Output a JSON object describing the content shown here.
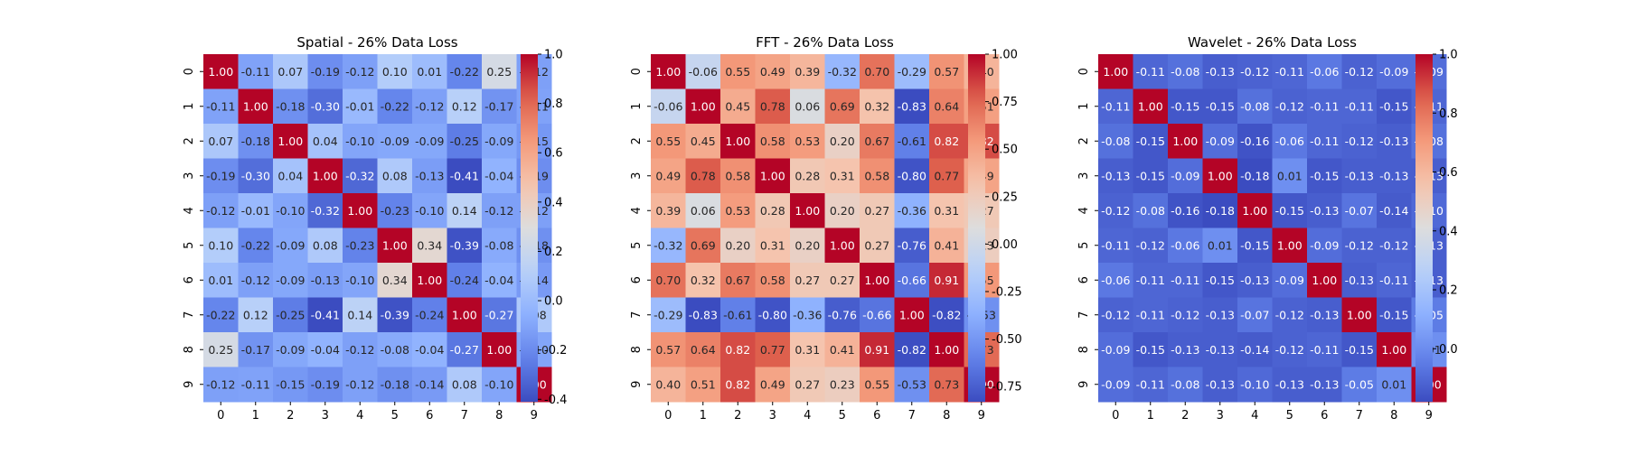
{
  "chart_data": [
    {
      "type": "heatmap",
      "title": "Spatial - 26% Data Loss",
      "x_categories": [
        "0",
        "1",
        "2",
        "3",
        "4",
        "5",
        "6",
        "7",
        "8",
        "9"
      ],
      "y_categories": [
        "0",
        "1",
        "2",
        "3",
        "4",
        "5",
        "6",
        "7",
        "8",
        "9"
      ],
      "colormap": "coolwarm",
      "vmin": -0.41,
      "vmax": 1.0,
      "colorbar_ticks": [
        "-0.4",
        "-0.2",
        "0.0",
        "0.2",
        "0.4",
        "0.6",
        "0.8",
        "1.0"
      ],
      "values": [
        [
          1.0,
          -0.11,
          0.07,
          -0.19,
          -0.12,
          0.1,
          0.01,
          -0.22,
          0.25,
          -0.12
        ],
        [
          -0.11,
          1.0,
          -0.18,
          -0.3,
          -0.01,
          -0.22,
          -0.12,
          0.12,
          -0.17,
          -0.11
        ],
        [
          0.07,
          -0.18,
          1.0,
          0.04,
          -0.1,
          -0.09,
          -0.09,
          -0.25,
          -0.09,
          -0.15
        ],
        [
          -0.19,
          -0.3,
          0.04,
          1.0,
          -0.32,
          0.08,
          -0.13,
          -0.41,
          -0.04,
          -0.19
        ],
        [
          -0.12,
          -0.01,
          -0.1,
          -0.32,
          1.0,
          -0.23,
          -0.1,
          0.14,
          -0.12,
          -0.12
        ],
        [
          0.1,
          -0.22,
          -0.09,
          0.08,
          -0.23,
          1.0,
          0.34,
          -0.39,
          -0.08,
          -0.18
        ],
        [
          0.01,
          -0.12,
          -0.09,
          -0.13,
          -0.1,
          0.34,
          1.0,
          -0.24,
          -0.04,
          -0.14
        ],
        [
          -0.22,
          0.12,
          -0.25,
          -0.41,
          0.14,
          -0.39,
          -0.24,
          1.0,
          -0.27,
          0.08
        ],
        [
          0.25,
          -0.17,
          -0.09,
          -0.04,
          -0.12,
          -0.08,
          -0.04,
          -0.27,
          1.0,
          -0.1
        ],
        [
          -0.12,
          -0.11,
          -0.15,
          -0.19,
          -0.12,
          -0.18,
          -0.14,
          0.08,
          -0.1,
          1.0
        ]
      ]
    },
    {
      "type": "heatmap",
      "title": "FFT - 26% Data Loss",
      "x_categories": [
        "0",
        "1",
        "2",
        "3",
        "4",
        "5",
        "6",
        "7",
        "8",
        "9"
      ],
      "y_categories": [
        "0",
        "1",
        "2",
        "3",
        "4",
        "5",
        "6",
        "7",
        "8",
        "9"
      ],
      "colormap": "coolwarm",
      "vmin": -0.83,
      "vmax": 1.0,
      "colorbar_ticks": [
        "-0.75",
        "-0.50",
        "-0.25",
        "0.00",
        "0.25",
        "0.50",
        "0.75",
        "1.00"
      ],
      "values": [
        [
          1.0,
          -0.06,
          0.55,
          0.49,
          0.39,
          -0.32,
          0.7,
          -0.29,
          0.57,
          0.4
        ],
        [
          -0.06,
          1.0,
          0.45,
          0.78,
          0.06,
          0.69,
          0.32,
          -0.83,
          0.64,
          0.51
        ],
        [
          0.55,
          0.45,
          1.0,
          0.58,
          0.53,
          0.2,
          0.67,
          -0.61,
          0.82,
          0.82
        ],
        [
          0.49,
          0.78,
          0.58,
          1.0,
          0.28,
          0.31,
          0.58,
          -0.8,
          0.77,
          0.49
        ],
        [
          0.39,
          0.06,
          0.53,
          0.28,
          1.0,
          0.2,
          0.27,
          -0.36,
          0.31,
          0.27
        ],
        [
          -0.32,
          0.69,
          0.2,
          0.31,
          0.2,
          1.0,
          0.27,
          -0.76,
          0.41,
          0.23
        ],
        [
          0.7,
          0.32,
          0.67,
          0.58,
          0.27,
          0.27,
          1.0,
          -0.66,
          0.91,
          0.55
        ],
        [
          -0.29,
          -0.83,
          -0.61,
          -0.8,
          -0.36,
          -0.76,
          -0.66,
          1.0,
          -0.82,
          -0.53
        ],
        [
          0.57,
          0.64,
          0.82,
          0.77,
          0.31,
          0.41,
          0.91,
          -0.82,
          1.0,
          0.73
        ],
        [
          0.4,
          0.51,
          0.82,
          0.49,
          0.27,
          0.23,
          0.55,
          -0.53,
          0.73,
          1.0
        ]
      ]
    },
    {
      "type": "heatmap",
      "title": "Wavelet - 26% Data Loss",
      "x_categories": [
        "0",
        "1",
        "2",
        "3",
        "4",
        "5",
        "6",
        "7",
        "8",
        "9"
      ],
      "y_categories": [
        "0",
        "1",
        "2",
        "3",
        "4",
        "5",
        "6",
        "7",
        "8",
        "9"
      ],
      "colormap": "coolwarm",
      "vmin": -0.18,
      "vmax": 1.0,
      "colorbar_ticks": [
        "0.0",
        "0.2",
        "0.4",
        "0.6",
        "0.8",
        "1.0"
      ],
      "values": [
        [
          1.0,
          -0.11,
          -0.08,
          -0.13,
          -0.12,
          -0.11,
          -0.06,
          -0.12,
          -0.09,
          -0.09
        ],
        [
          -0.11,
          1.0,
          -0.15,
          -0.15,
          -0.08,
          -0.12,
          -0.11,
          -0.11,
          -0.15,
          -0.11
        ],
        [
          -0.08,
          -0.15,
          1.0,
          -0.09,
          -0.16,
          -0.06,
          -0.11,
          -0.12,
          -0.13,
          -0.08
        ],
        [
          -0.13,
          -0.15,
          -0.09,
          1.0,
          -0.18,
          0.01,
          -0.15,
          -0.13,
          -0.13,
          -0.13
        ],
        [
          -0.12,
          -0.08,
          -0.16,
          -0.18,
          1.0,
          -0.15,
          -0.13,
          -0.07,
          -0.14,
          -0.1
        ],
        [
          -0.11,
          -0.12,
          -0.06,
          0.01,
          -0.15,
          1.0,
          -0.09,
          -0.12,
          -0.12,
          -0.13
        ],
        [
          -0.06,
          -0.11,
          -0.11,
          -0.15,
          -0.13,
          -0.09,
          1.0,
          -0.13,
          -0.11,
          -0.13
        ],
        [
          -0.12,
          -0.11,
          -0.12,
          -0.13,
          -0.07,
          -0.12,
          -0.13,
          1.0,
          -0.15,
          -0.05
        ],
        [
          -0.09,
          -0.15,
          -0.13,
          -0.13,
          -0.14,
          -0.12,
          -0.11,
          -0.15,
          1.0,
          0.01
        ],
        [
          -0.09,
          -0.11,
          -0.08,
          -0.13,
          -0.1,
          -0.13,
          -0.13,
          -0.05,
          0.01,
          1.0
        ]
      ]
    }
  ]
}
